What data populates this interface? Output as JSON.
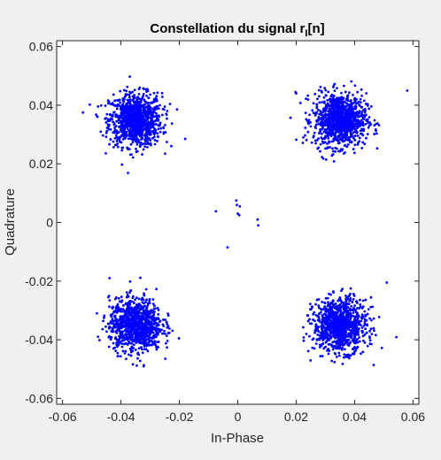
{
  "chart_data": {
    "type": "scatter",
    "title": "Constellation du signal r",
    "title_subscript": "I",
    "title_suffix": "[n]",
    "xlabel": "In-Phase",
    "ylabel": "Quadrature",
    "xlim": [
      -0.062,
      0.062
    ],
    "ylim": [
      -0.062,
      0.062
    ],
    "xticks": [
      -0.06,
      -0.04,
      -0.02,
      0,
      0.02,
      0.04,
      0.06
    ],
    "xtick_labels": [
      "-0.06",
      "-0.04",
      "-0.02",
      "0",
      "0.02",
      "0.04",
      "0.06"
    ],
    "yticks": [
      -0.06,
      -0.04,
      -0.02,
      0,
      0.02,
      0.04,
      0.06
    ],
    "ytick_labels": [
      "-0.06",
      "-0.04",
      "-0.02",
      "0",
      "0.02",
      "0.04",
      "0.06"
    ],
    "grid": false,
    "marker_color": "#0000ff",
    "series": [
      {
        "clusters": [
          {
            "center": [
              -0.035,
              0.035
            ],
            "spread": 0.0045,
            "count": 1000
          },
          {
            "center": [
              0.035,
              0.035
            ],
            "spread": 0.0045,
            "count": 1000
          },
          {
            "center": [
              -0.035,
              -0.035
            ],
            "spread": 0.0045,
            "count": 1000
          },
          {
            "center": [
              0.035,
              -0.035
            ],
            "spread": 0.0045,
            "count": 1000
          }
        ],
        "extra_points": [
          [
            -0.0075,
            0.0038
          ],
          [
            -0.0035,
            -0.0085
          ],
          [
            -0.0005,
            0.0075
          ],
          [
            -0.0003,
            0.006
          ],
          [
            0.0,
            0.003
          ],
          [
            0.0005,
            0.0025
          ],
          [
            0.0007,
            0.0055
          ],
          [
            0.0068,
            0.001
          ],
          [
            0.007,
            -0.001
          ],
          [
            0.058,
            0.045
          ],
          [
            -0.053,
            0.0375
          ],
          [
            0.051,
            -0.0205
          ],
          [
            -0.018,
            0.0285
          ],
          [
            0.02,
            0.044
          ]
        ]
      }
    ]
  }
}
